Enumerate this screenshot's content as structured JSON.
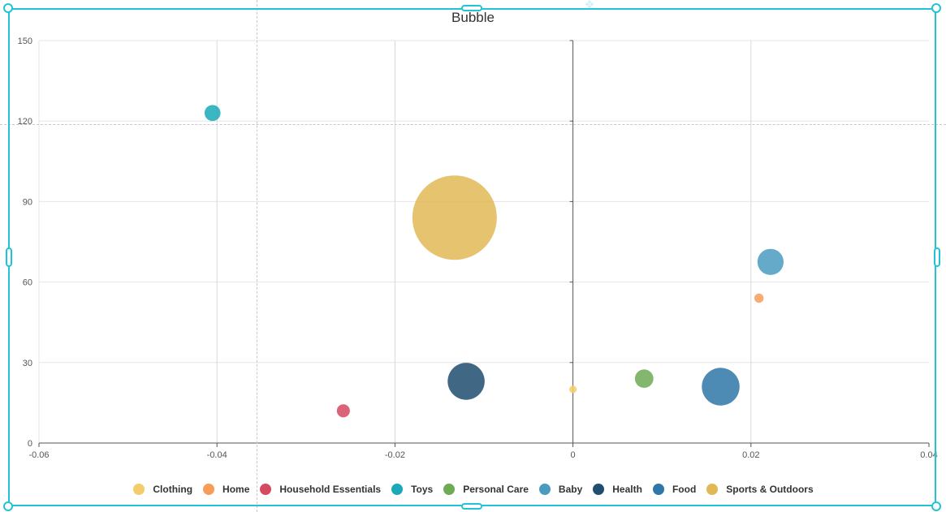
{
  "chart_data": {
    "type": "bubble",
    "title": "Bubble",
    "xlim": [
      -0.06,
      0.04
    ],
    "ylim": [
      0,
      150
    ],
    "x_ticks": [
      -0.06,
      -0.04,
      -0.02,
      0,
      0.02,
      0.04
    ],
    "x_tick_labels": [
      "-0.06",
      "-0.04",
      "-0.02",
      "0",
      "0.02",
      "0.04"
    ],
    "y_ticks": [
      0,
      30,
      60,
      90,
      120,
      150
    ],
    "y_tick_labels": [
      "0",
      "30",
      "60",
      "90",
      "120",
      "150"
    ],
    "grid": true,
    "legend_position": "bottom",
    "series": [
      {
        "name": "Clothing",
        "color": "#f4cc6a",
        "points": [
          {
            "x": 0.0,
            "y": 20,
            "size": 1
          }
        ]
      },
      {
        "name": "Home",
        "color": "#f79d58",
        "points": [
          {
            "x": 0.0209,
            "y": 54,
            "size": 1.5
          }
        ]
      },
      {
        "name": "Household Essentials",
        "color": "#d44a60",
        "points": [
          {
            "x": -0.0258,
            "y": 12,
            "size": 3
          }
        ]
      },
      {
        "name": "Toys",
        "color": "#1aa9b8",
        "points": [
          {
            "x": -0.0405,
            "y": 123,
            "size": 4.5
          }
        ]
      },
      {
        "name": "Personal Care",
        "color": "#6faa55",
        "points": [
          {
            "x": 0.008,
            "y": 24,
            "size": 6
          }
        ]
      },
      {
        "name": "Baby",
        "color": "#4b9bc0",
        "points": [
          {
            "x": 0.0222,
            "y": 67.5,
            "size": 12
          }
        ]
      },
      {
        "name": "Health",
        "color": "#1f4e6e",
        "points": [
          {
            "x": -0.012,
            "y": 23,
            "size": 24
          }
        ]
      },
      {
        "name": "Food",
        "color": "#2e77a8",
        "points": [
          {
            "x": 0.0166,
            "y": 21,
            "size": 25
          }
        ]
      },
      {
        "name": "Sports & Outdoors",
        "color": "#e0b956",
        "points": [
          {
            "x": -0.0133,
            "y": 84,
            "size": 125
          }
        ]
      }
    ]
  },
  "legend": {
    "items": [
      {
        "label": "Clothing",
        "color": "#f4cc6a"
      },
      {
        "label": "Home",
        "color": "#f79d58"
      },
      {
        "label": "Household Essentials",
        "color": "#d44a60"
      },
      {
        "label": "Toys",
        "color": "#1aa9b8"
      },
      {
        "label": "Personal Care",
        "color": "#6faa55"
      },
      {
        "label": "Baby",
        "color": "#4b9bc0"
      },
      {
        "label": "Health",
        "color": "#1f4e6e"
      },
      {
        "label": "Food",
        "color": "#2e77a8"
      },
      {
        "label": "Sports & Outdoors",
        "color": "#e0b956"
      }
    ]
  },
  "selection": {
    "color": "#21c4d6"
  }
}
